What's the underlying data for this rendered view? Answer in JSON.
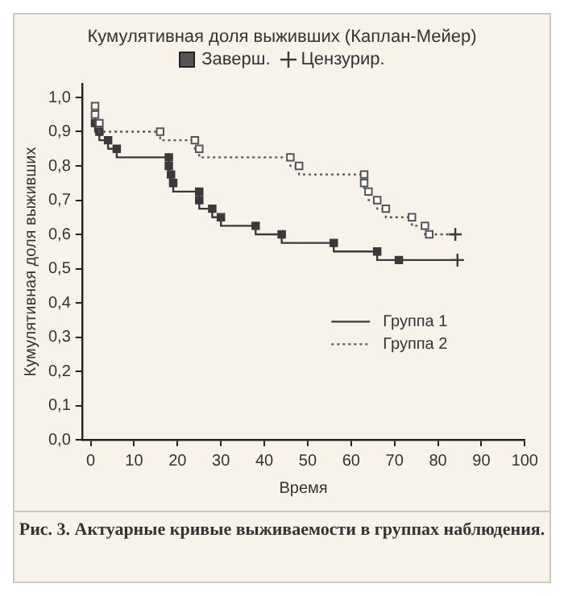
{
  "chart_data": {
    "type": "step",
    "title": "Кумулятивная доля выживших (Каплан-Мейер)",
    "xlabel": "Время",
    "ylabel": "Кумулятивная доля выживших",
    "annotations": [
      "Заверш.",
      "Рис. 3. Актуарные кривые выживаемости в группах наблюдения."
    ],
    "xlim": [
      -2,
      100
    ],
    "xticks": [
      0,
      10,
      20,
      30,
      40,
      50,
      60,
      70,
      80,
      90,
      100
    ],
    "ylim": [
      0,
      1.04
    ],
    "yticks": [
      {
        "value": 0,
        "label": "0,0"
      },
      {
        "value": 0.1,
        "label": "0,1"
      },
      {
        "value": 0.2,
        "label": "0,2"
      },
      {
        "value": 0.3,
        "label": "0,3"
      },
      {
        "value": 0.4,
        "label": "0,4"
      },
      {
        "value": 0.5,
        "label": "0,5"
      },
      {
        "value": 0.6,
        "label": "0,6"
      },
      {
        "value": 0.7,
        "label": "0,7"
      },
      {
        "value": 0.8,
        "label": "0,8"
      },
      {
        "value": 0.9,
        "label": "0,9"
      },
      {
        "value": 1,
        "label": "1,0"
      }
    ],
    "grid": false,
    "legend": "right",
    "marker": "square",
    "series": [
      {
        "name": "Группа 1",
        "color": "#3a3a3a",
        "line_style": "solid",
        "x": [
          1,
          2,
          4,
          6,
          18,
          18,
          18.5,
          19,
          25,
          25,
          28,
          30,
          38,
          44,
          56,
          66,
          71,
          84.5
        ],
        "values": [
          0.925,
          0.9,
          0.875,
          0.85,
          0.825,
          0.8,
          0.775,
          0.75,
          0.725,
          0.7,
          0.675,
          0.65,
          0.625,
          0.6,
          0.575,
          0.55,
          0.525,
          0.525
        ]
      },
      {
        "name": "Группа 2",
        "color": "#555555",
        "line_style": "dotted",
        "x": [
          1,
          1,
          2,
          16,
          24,
          25,
          46,
          48,
          63,
          63,
          64,
          66,
          68,
          74,
          77,
          78,
          84
        ],
        "values": [
          0.975,
          0.95,
          0.925,
          0.9,
          0.875,
          0.85,
          0.825,
          0.8,
          0.775,
          0.75,
          0.725,
          0.7,
          0.675,
          0.65,
          0.625,
          0.6,
          0.6
        ]
      },
      {
        "name": "Цензурир.",
        "type": "scatter",
        "marker": "cross",
        "color": "#3a3a3a",
        "x": [
          84.5,
          84
        ],
        "values": [
          0.525,
          0.6
        ]
      }
    ]
  }
}
